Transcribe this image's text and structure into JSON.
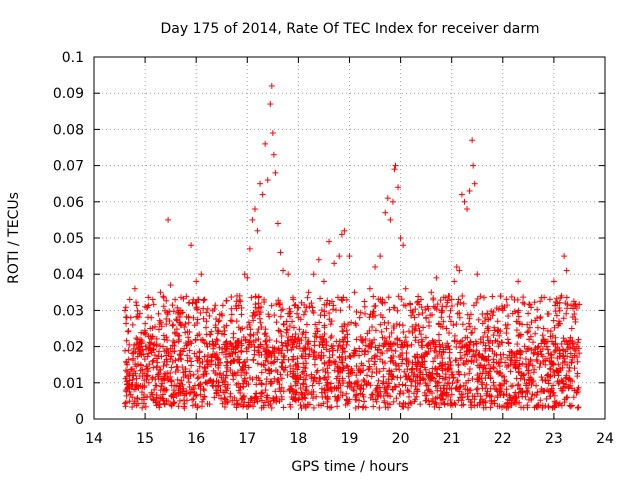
{
  "chart_data": {
    "type": "scatter",
    "title": "Day 175 of 2014, Rate Of TEC Index for receiver darm",
    "xlabel": "GPS time / hours",
    "ylabel": "ROTI / TECUs",
    "xlim": [
      14,
      24
    ],
    "ylim": [
      0,
      0.1
    ],
    "grid": true,
    "marker": "+",
    "color": "#ff0000",
    "x_ticks": [
      "14",
      "15",
      "16",
      "17",
      "18",
      "19",
      "20",
      "21",
      "22",
      "23",
      "24"
    ],
    "y_ticks": [
      "0",
      "0.01",
      "0.02",
      "0.03",
      "0.04",
      "0.05",
      "0.06",
      "0.07",
      "0.08",
      "0.09",
      "0.1"
    ],
    "series": [
      {
        "name": "ROTI",
        "points": [
          [
            14.65,
            0.015
          ],
          [
            14.7,
            0.033
          ],
          [
            14.72,
            0.028
          ],
          [
            14.75,
            0.012
          ],
          [
            14.8,
            0.036
          ],
          [
            14.85,
            0.022
          ],
          [
            14.9,
            0.018
          ],
          [
            14.95,
            0.009
          ],
          [
            15.0,
            0.031
          ],
          [
            15.05,
            0.014
          ],
          [
            15.1,
            0.025
          ],
          [
            15.15,
            0.033
          ],
          [
            15.2,
            0.011
          ],
          [
            15.3,
            0.035
          ],
          [
            15.35,
            0.02
          ],
          [
            15.45,
            0.055
          ],
          [
            15.5,
            0.037
          ],
          [
            15.55,
            0.026
          ],
          [
            15.6,
            0.013
          ],
          [
            15.7,
            0.03
          ],
          [
            15.8,
            0.021
          ],
          [
            15.85,
            0.028
          ],
          [
            15.9,
            0.048
          ],
          [
            16.0,
            0.038
          ],
          [
            16.05,
            0.033
          ],
          [
            16.1,
            0.04
          ],
          [
            16.2,
            0.027
          ],
          [
            16.3,
            0.017
          ],
          [
            16.4,
            0.022
          ],
          [
            16.5,
            0.029
          ],
          [
            16.6,
            0.012
          ],
          [
            16.7,
            0.027
          ],
          [
            16.8,
            0.034
          ],
          [
            16.9,
            0.025
          ],
          [
            16.95,
            0.04
          ],
          [
            17.0,
            0.039
          ],
          [
            17.05,
            0.047
          ],
          [
            17.1,
            0.055
          ],
          [
            17.15,
            0.058
          ],
          [
            17.2,
            0.052
          ],
          [
            17.25,
            0.065
          ],
          [
            17.3,
            0.062
          ],
          [
            17.35,
            0.076
          ],
          [
            17.4,
            0.066
          ],
          [
            17.45,
            0.087
          ],
          [
            17.48,
            0.092
          ],
          [
            17.5,
            0.079
          ],
          [
            17.52,
            0.073
          ],
          [
            17.55,
            0.068
          ],
          [
            17.6,
            0.054
          ],
          [
            17.65,
            0.046
          ],
          [
            17.7,
            0.041
          ],
          [
            17.8,
            0.04
          ],
          [
            17.9,
            0.033
          ],
          [
            18.0,
            0.028
          ],
          [
            18.1,
            0.024
          ],
          [
            18.2,
            0.035
          ],
          [
            18.3,
            0.04
          ],
          [
            18.4,
            0.044
          ],
          [
            18.5,
            0.038
          ],
          [
            18.6,
            0.049
          ],
          [
            18.7,
            0.043
          ],
          [
            18.8,
            0.045
          ],
          [
            18.85,
            0.051
          ],
          [
            18.9,
            0.052
          ],
          [
            19.0,
            0.045
          ],
          [
            19.1,
            0.035
          ],
          [
            19.2,
            0.028
          ],
          [
            19.3,
            0.031
          ],
          [
            19.4,
            0.036
          ],
          [
            19.5,
            0.042
          ],
          [
            19.6,
            0.045
          ],
          [
            19.7,
            0.057
          ],
          [
            19.75,
            0.061
          ],
          [
            19.8,
            0.055
          ],
          [
            19.85,
            0.06
          ],
          [
            19.88,
            0.069
          ],
          [
            19.9,
            0.07
          ],
          [
            19.95,
            0.064
          ],
          [
            20.0,
            0.05
          ],
          [
            20.05,
            0.048
          ],
          [
            20.1,
            0.036
          ],
          [
            20.2,
            0.03
          ],
          [
            20.3,
            0.026
          ],
          [
            20.4,
            0.033
          ],
          [
            20.5,
            0.028
          ],
          [
            20.6,
            0.035
          ],
          [
            20.7,
            0.039
          ],
          [
            20.8,
            0.03
          ],
          [
            20.9,
            0.025
          ],
          [
            21.0,
            0.033
          ],
          [
            21.05,
            0.038
          ],
          [
            21.1,
            0.042
          ],
          [
            21.15,
            0.041
          ],
          [
            21.2,
            0.062
          ],
          [
            21.25,
            0.06
          ],
          [
            21.3,
            0.058
          ],
          [
            21.35,
            0.063
          ],
          [
            21.4,
            0.077
          ],
          [
            21.42,
            0.07
          ],
          [
            21.45,
            0.065
          ],
          [
            21.5,
            0.04
          ],
          [
            21.6,
            0.029
          ],
          [
            21.7,
            0.025
          ],
          [
            21.8,
            0.021
          ],
          [
            21.9,
            0.027
          ],
          [
            22.0,
            0.03
          ],
          [
            22.1,
            0.022
          ],
          [
            22.3,
            0.038
          ],
          [
            22.4,
            0.012
          ],
          [
            22.5,
            0.015
          ],
          [
            22.6,
            0.018
          ],
          [
            22.7,
            0.02
          ],
          [
            22.8,
            0.025
          ],
          [
            22.9,
            0.029
          ],
          [
            23.0,
            0.038
          ],
          [
            23.1,
            0.027
          ],
          [
            23.15,
            0.034
          ],
          [
            23.2,
            0.045
          ],
          [
            23.25,
            0.041
          ],
          [
            23.3,
            0.021
          ],
          [
            23.35,
            0.025
          ],
          [
            23.4,
            0.029
          ],
          [
            23.45,
            0.02
          ]
        ],
        "baseline_band": {
          "x_range": [
            14.6,
            23.5
          ],
          "y_min": 0.003,
          "y_max": 0.022,
          "density": "dense"
        }
      }
    ]
  }
}
